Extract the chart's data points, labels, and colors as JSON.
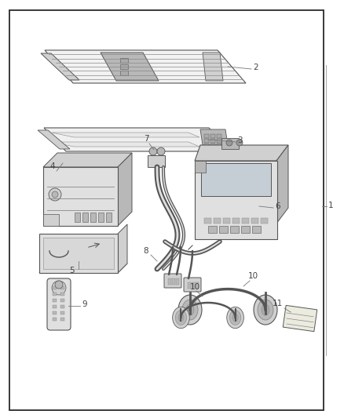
{
  "background_color": "#ffffff",
  "border_color": "#2a2a2a",
  "label_color": "#444444",
  "line_color": "#777777",
  "gray_dark": "#555555",
  "gray_mid": "#888888",
  "gray_light": "#cccccc",
  "gray_fill": "#e0e0e0",
  "gray_fill2": "#d0d0d0",
  "gray_fill3": "#b8b8b8",
  "figsize": [
    4.38,
    5.33
  ],
  "dpi": 100
}
